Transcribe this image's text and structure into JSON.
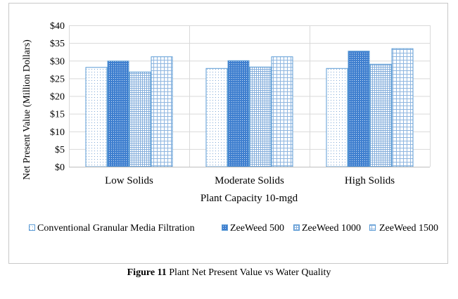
{
  "caption": {
    "label": "Figure 11",
    "text": " Plant Net Present Value vs Water Quality"
  },
  "chart_data": {
    "type": "bar",
    "title": "",
    "xlabel": "Plant Capacity 10-mgd",
    "ylabel": "Net Present Value (Million Dollars)",
    "categories": [
      "Low Solids",
      "Moderate Solids",
      "High Solids"
    ],
    "ylim": [
      0,
      40
    ],
    "yticks": [
      0,
      5,
      10,
      15,
      20,
      25,
      30,
      35,
      40
    ],
    "ytick_labels": [
      "$0",
      "$5",
      "$10",
      "$15",
      "$20",
      "$25",
      "$30",
      "$35",
      "$40"
    ],
    "grid": true,
    "legend_position": "bottom",
    "series": [
      {
        "name": "Conventional Granular Media Filtration",
        "values": [
          28.2,
          27.9,
          27.9
        ],
        "pattern": "dots",
        "color": "#5b9bd5"
      },
      {
        "name": "ZeeWeed 500",
        "values": [
          30.0,
          30.1,
          32.8
        ],
        "pattern": "dense-checker",
        "color": "#5b9bd5"
      },
      {
        "name": "ZeeWeed 1000",
        "values": [
          26.9,
          28.3,
          29.1
        ],
        "pattern": "fine-grid",
        "color": "#5b9bd5"
      },
      {
        "name": "ZeeWeed 1500",
        "values": [
          31.2,
          31.2,
          33.5
        ],
        "pattern": "grid",
        "color": "#5b9bd5"
      }
    ]
  }
}
